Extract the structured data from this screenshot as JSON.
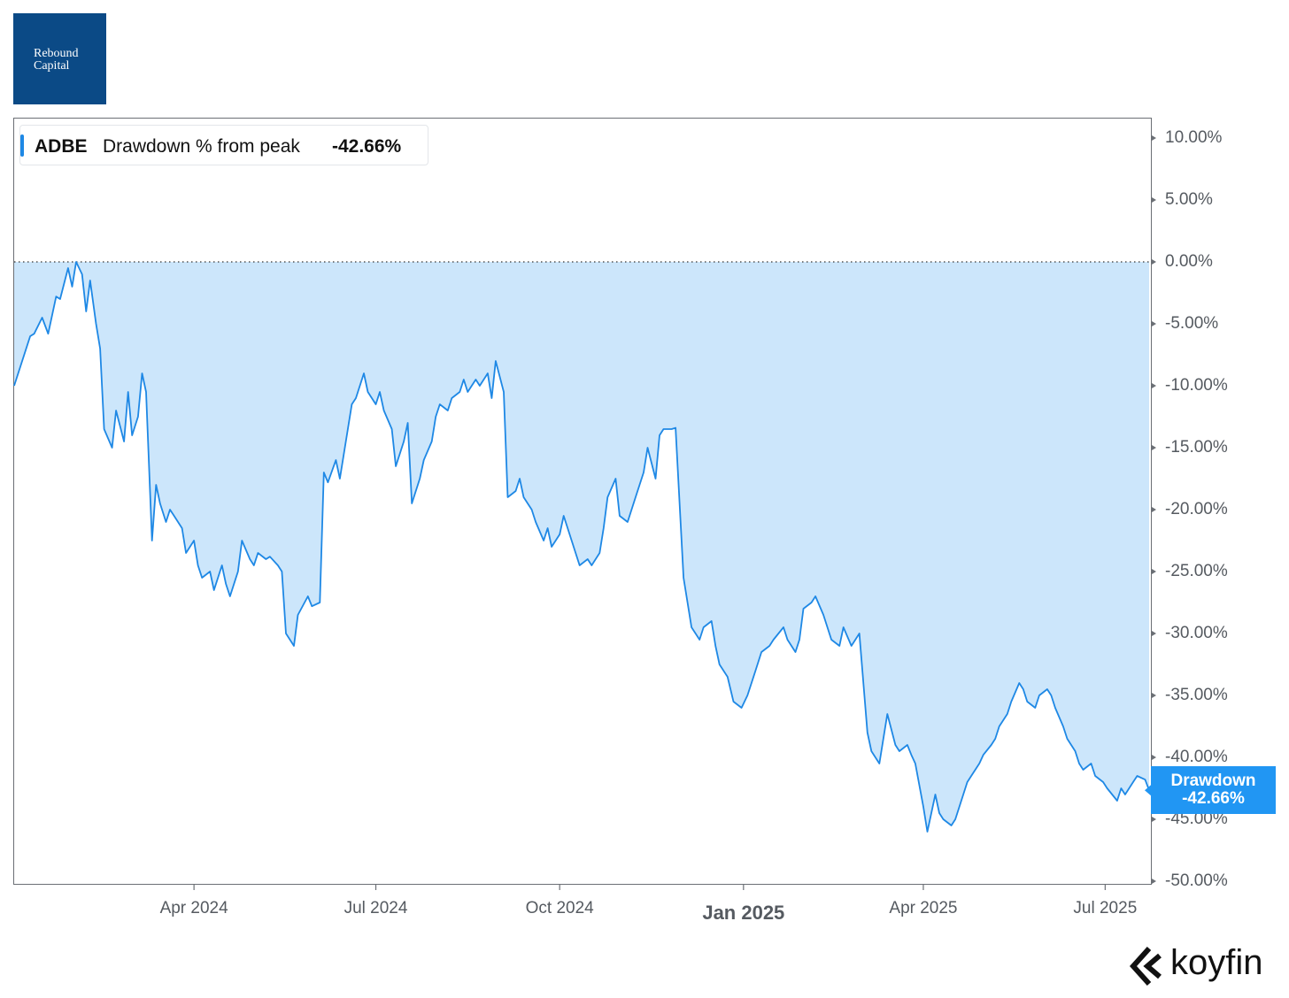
{
  "brand": {
    "line1": "Rebound",
    "line2": "Capital"
  },
  "legend": {
    "ticker": "ADBE",
    "label": "Drawdown % from peak",
    "value": "-42.66%"
  },
  "flag": {
    "line1": "Drawdown",
    "line2": "-42.66%"
  },
  "footer_logo": {
    "word": "koyfin",
    "icon": "koyfin-chevron-icon"
  },
  "colors": {
    "line": "#1e88e5",
    "fill": "#cce6fb",
    "flag": "#2196f3",
    "brand": "#0b4a86"
  },
  "chart_data": {
    "type": "area",
    "title": "",
    "xlabel": "",
    "ylabel": "",
    "series": [
      {
        "name": "ADBE",
        "points": [
          [
            "2024-01-02",
            -10.0
          ],
          [
            "2024-01-05",
            -8.5
          ],
          [
            "2024-01-10",
            -6.0
          ],
          [
            "2024-01-12",
            -5.8
          ],
          [
            "2024-01-16",
            -4.5
          ],
          [
            "2024-01-19",
            -5.8
          ],
          [
            "2024-01-23",
            -2.8
          ],
          [
            "2024-01-25",
            -3.0
          ],
          [
            "2024-01-29",
            -0.5
          ],
          [
            "2024-01-31",
            -2.0
          ],
          [
            "2024-02-02",
            0.0
          ],
          [
            "2024-02-05",
            -1.0
          ],
          [
            "2024-02-07",
            -4.0
          ],
          [
            "2024-02-09",
            -1.5
          ],
          [
            "2024-02-12",
            -5.0
          ],
          [
            "2024-02-14",
            -7.0
          ],
          [
            "2024-02-16",
            -13.5
          ],
          [
            "2024-02-20",
            -15.0
          ],
          [
            "2024-02-22",
            -12.0
          ],
          [
            "2024-02-26",
            -14.5
          ],
          [
            "2024-02-28",
            -10.5
          ],
          [
            "2024-03-01",
            -14.0
          ],
          [
            "2024-03-04",
            -12.5
          ],
          [
            "2024-03-06",
            -9.0
          ],
          [
            "2024-03-08",
            -10.5
          ],
          [
            "2024-03-11",
            -22.5
          ],
          [
            "2024-03-13",
            -18.0
          ],
          [
            "2024-03-15",
            -19.5
          ],
          [
            "2024-03-18",
            -21.0
          ],
          [
            "2024-03-20",
            -20.0
          ],
          [
            "2024-03-22",
            -20.5
          ],
          [
            "2024-03-26",
            -21.5
          ],
          [
            "2024-03-28",
            -23.5
          ],
          [
            "2024-04-01",
            -22.5
          ],
          [
            "2024-04-03",
            -24.5
          ],
          [
            "2024-04-05",
            -25.5
          ],
          [
            "2024-04-09",
            -25.0
          ],
          [
            "2024-04-11",
            -26.5
          ],
          [
            "2024-04-15",
            -24.5
          ],
          [
            "2024-04-17",
            -26.0
          ],
          [
            "2024-04-19",
            -27.0
          ],
          [
            "2024-04-23",
            -25.0
          ],
          [
            "2024-04-25",
            -22.5
          ],
          [
            "2024-04-29",
            -24.0
          ],
          [
            "2024-05-01",
            -24.5
          ],
          [
            "2024-05-03",
            -23.5
          ],
          [
            "2024-05-07",
            -24.0
          ],
          [
            "2024-05-09",
            -23.8
          ],
          [
            "2024-05-13",
            -24.5
          ],
          [
            "2024-05-15",
            -25.0
          ],
          [
            "2024-05-17",
            -30.0
          ],
          [
            "2024-05-21",
            -31.0
          ],
          [
            "2024-05-23",
            -28.5
          ],
          [
            "2024-05-28",
            -27.0
          ],
          [
            "2024-05-30",
            -27.8
          ],
          [
            "2024-06-03",
            -27.5
          ],
          [
            "2024-06-05",
            -17.0
          ],
          [
            "2024-06-07",
            -17.8
          ],
          [
            "2024-06-11",
            -16.0
          ],
          [
            "2024-06-13",
            -17.5
          ],
          [
            "2024-06-17",
            -13.5
          ],
          [
            "2024-06-19",
            -11.5
          ],
          [
            "2024-06-21",
            -11.0
          ],
          [
            "2024-06-25",
            -9.0
          ],
          [
            "2024-06-27",
            -10.5
          ],
          [
            "2024-07-01",
            -11.5
          ],
          [
            "2024-07-03",
            -10.5
          ],
          [
            "2024-07-05",
            -12.0
          ],
          [
            "2024-07-09",
            -13.5
          ],
          [
            "2024-07-11",
            -16.5
          ],
          [
            "2024-07-15",
            -14.5
          ],
          [
            "2024-07-17",
            -13.0
          ],
          [
            "2024-07-19",
            -19.5
          ],
          [
            "2024-07-23",
            -17.5
          ],
          [
            "2024-07-25",
            -16.0
          ],
          [
            "2024-07-29",
            -14.5
          ],
          [
            "2024-07-31",
            -12.5
          ],
          [
            "2024-08-02",
            -11.5
          ],
          [
            "2024-08-06",
            -12.0
          ],
          [
            "2024-08-08",
            -11.0
          ],
          [
            "2024-08-12",
            -10.5
          ],
          [
            "2024-08-14",
            -9.5
          ],
          [
            "2024-08-16",
            -10.5
          ],
          [
            "2024-08-20",
            -9.5
          ],
          [
            "2024-08-22",
            -10.0
          ],
          [
            "2024-08-26",
            -9.0
          ],
          [
            "2024-08-28",
            -11.0
          ],
          [
            "2024-08-30",
            -8.0
          ],
          [
            "2024-09-03",
            -10.5
          ],
          [
            "2024-09-05",
            -19.0
          ],
          [
            "2024-09-09",
            -18.5
          ],
          [
            "2024-09-11",
            -17.5
          ],
          [
            "2024-09-13",
            -19.0
          ],
          [
            "2024-09-17",
            -20.0
          ],
          [
            "2024-09-19",
            -21.0
          ],
          [
            "2024-09-23",
            -22.5
          ],
          [
            "2024-09-25",
            -21.5
          ],
          [
            "2024-09-27",
            -23.0
          ],
          [
            "2024-10-01",
            -22.0
          ],
          [
            "2024-10-03",
            -20.5
          ],
          [
            "2024-10-07",
            -22.5
          ],
          [
            "2024-10-09",
            -23.5
          ],
          [
            "2024-10-11",
            -24.5
          ],
          [
            "2024-10-15",
            -24.0
          ],
          [
            "2024-10-17",
            -24.5
          ],
          [
            "2024-10-21",
            -23.5
          ],
          [
            "2024-10-23",
            -21.5
          ],
          [
            "2024-10-25",
            -19.0
          ],
          [
            "2024-10-29",
            -17.5
          ],
          [
            "2024-10-31",
            -20.5
          ],
          [
            "2024-11-04",
            -21.0
          ],
          [
            "2024-11-06",
            -20.0
          ],
          [
            "2024-11-08",
            -19.0
          ],
          [
            "2024-11-12",
            -17.0
          ],
          [
            "2024-11-14",
            -15.0
          ],
          [
            "2024-11-18",
            -17.5
          ],
          [
            "2024-11-20",
            -14.0
          ],
          [
            "2024-11-22",
            -13.5
          ],
          [
            "2024-11-26",
            -13.5
          ],
          [
            "2024-11-28",
            -13.4
          ],
          [
            "2024-12-02",
            -25.5
          ],
          [
            "2024-12-04",
            -27.5
          ],
          [
            "2024-12-06",
            -29.5
          ],
          [
            "2024-12-10",
            -30.5
          ],
          [
            "2024-12-12",
            -29.5
          ],
          [
            "2024-12-16",
            -29.0
          ],
          [
            "2024-12-18",
            -31.0
          ],
          [
            "2024-12-20",
            -32.5
          ],
          [
            "2024-12-24",
            -33.5
          ],
          [
            "2024-12-27",
            -35.5
          ],
          [
            "2024-12-31",
            -36.0
          ],
          [
            "2025-01-03",
            -35.0
          ],
          [
            "2025-01-07",
            -33.0
          ],
          [
            "2025-01-10",
            -31.5
          ],
          [
            "2025-01-14",
            -31.0
          ],
          [
            "2025-01-16",
            -30.5
          ],
          [
            "2025-01-21",
            -29.5
          ],
          [
            "2025-01-23",
            -30.5
          ],
          [
            "2025-01-27",
            -31.5
          ],
          [
            "2025-01-29",
            -30.5
          ],
          [
            "2025-01-31",
            -28.0
          ],
          [
            "2025-02-04",
            -27.5
          ],
          [
            "2025-02-06",
            -27.0
          ],
          [
            "2025-02-10",
            -28.5
          ],
          [
            "2025-02-12",
            -29.5
          ],
          [
            "2025-02-14",
            -30.5
          ],
          [
            "2025-02-18",
            -31.0
          ],
          [
            "2025-02-20",
            -29.5
          ],
          [
            "2025-02-24",
            -31.0
          ],
          [
            "2025-02-26",
            -30.5
          ],
          [
            "2025-02-28",
            -30.0
          ],
          [
            "2025-03-04",
            -38.0
          ],
          [
            "2025-03-06",
            -39.5
          ],
          [
            "2025-03-10",
            -40.5
          ],
          [
            "2025-03-12",
            -38.5
          ],
          [
            "2025-03-14",
            -36.5
          ],
          [
            "2025-03-18",
            -39.0
          ],
          [
            "2025-03-20",
            -39.5
          ],
          [
            "2025-03-24",
            -39.0
          ],
          [
            "2025-03-26",
            -39.8
          ],
          [
            "2025-03-28",
            -40.5
          ],
          [
            "2025-04-01",
            -44.0
          ],
          [
            "2025-04-03",
            -46.0
          ],
          [
            "2025-04-07",
            -43.0
          ],
          [
            "2025-04-09",
            -44.5
          ],
          [
            "2025-04-11",
            -45.0
          ],
          [
            "2025-04-15",
            -45.5
          ],
          [
            "2025-04-17",
            -45.0
          ],
          [
            "2025-04-21",
            -43.0
          ],
          [
            "2025-04-23",
            -42.0
          ],
          [
            "2025-04-25",
            -41.5
          ],
          [
            "2025-04-29",
            -40.5
          ],
          [
            "2025-05-01",
            -39.8
          ],
          [
            "2025-05-05",
            -39.0
          ],
          [
            "2025-05-07",
            -38.5
          ],
          [
            "2025-05-09",
            -37.5
          ],
          [
            "2025-05-13",
            -36.5
          ],
          [
            "2025-05-15",
            -35.5
          ],
          [
            "2025-05-19",
            -34.0
          ],
          [
            "2025-05-21",
            -34.5
          ],
          [
            "2025-05-23",
            -35.5
          ],
          [
            "2025-05-27",
            -36.0
          ],
          [
            "2025-05-29",
            -35.0
          ],
          [
            "2025-06-02",
            -34.5
          ],
          [
            "2025-06-04",
            -35.0
          ],
          [
            "2025-06-06",
            -36.0
          ],
          [
            "2025-06-10",
            -37.5
          ],
          [
            "2025-06-12",
            -38.5
          ],
          [
            "2025-06-16",
            -39.5
          ],
          [
            "2025-06-18",
            -40.5
          ],
          [
            "2025-06-20",
            -41.0
          ],
          [
            "2025-06-24",
            -40.5
          ],
          [
            "2025-06-26",
            -41.5
          ],
          [
            "2025-06-30",
            -42.0
          ],
          [
            "2025-07-02",
            -42.5
          ],
          [
            "2025-07-07",
            -43.5
          ],
          [
            "2025-07-09",
            -42.5
          ],
          [
            "2025-07-11",
            -43.0
          ],
          [
            "2025-07-15",
            -42.0
          ],
          [
            "2025-07-17",
            -41.5
          ],
          [
            "2025-07-21",
            -41.8
          ],
          [
            "2025-07-23",
            -42.66
          ]
        ]
      }
    ],
    "y_ticks": [
      {
        "value": 10,
        "label": "10.00%"
      },
      {
        "value": 5,
        "label": "5.00%"
      },
      {
        "value": 0,
        "label": "0.00%"
      },
      {
        "value": -5,
        "label": "-5.00%"
      },
      {
        "value": -10,
        "label": "-10.00%"
      },
      {
        "value": -15,
        "label": "-15.00%"
      },
      {
        "value": -20,
        "label": "-20.00%"
      },
      {
        "value": -25,
        "label": "-25.00%"
      },
      {
        "value": -30,
        "label": "-30.00%"
      },
      {
        "value": -35,
        "label": "-35.00%"
      },
      {
        "value": -40,
        "label": "-40.00%"
      },
      {
        "value": -45,
        "label": "-45.00%"
      },
      {
        "value": -50,
        "label": "-50.00%"
      }
    ],
    "x_ticks": [
      {
        "date": "2024-04-01",
        "label": "Apr 2024",
        "bold": false
      },
      {
        "date": "2024-07-01",
        "label": "Jul 2024",
        "bold": false
      },
      {
        "date": "2024-10-01",
        "label": "Oct 2024",
        "bold": false
      },
      {
        "date": "2025-01-01",
        "label": "Jan 2025",
        "bold": true
      },
      {
        "date": "2025-04-01",
        "label": "Apr 2025",
        "bold": false
      },
      {
        "date": "2025-07-01",
        "label": "Jul 2025",
        "bold": false
      }
    ],
    "ylim": [
      -50,
      10
    ],
    "xlim": [
      "2024-01-02",
      "2025-07-23"
    ],
    "reference_line": 0,
    "grid": false,
    "legend_position": "top-left"
  }
}
